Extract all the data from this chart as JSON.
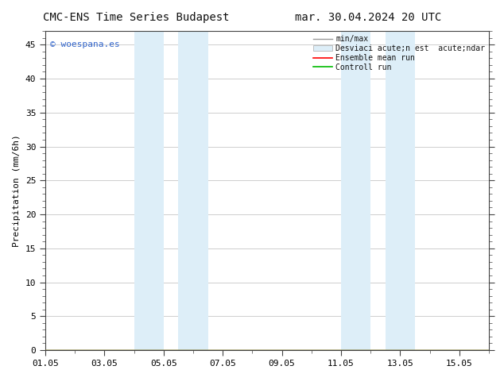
{
  "title_left": "CMC-ENS Time Series Budapest",
  "title_right": "mar. 30.04.2024 20 UTC",
  "ylabel": "Precipitation (mm/6h)",
  "ylim": [
    0,
    47
  ],
  "yticks": [
    0,
    5,
    10,
    15,
    20,
    25,
    30,
    35,
    40,
    45
  ],
  "xlim": [
    0,
    15
  ],
  "xtick_labels": [
    "01.05",
    "03.05",
    "05.05",
    "07.05",
    "09.05",
    "11.05",
    "13.05",
    "15.05"
  ],
  "xtick_positions": [
    0,
    2,
    4,
    6,
    8,
    10,
    12,
    14
  ],
  "shade_regions": [
    {
      "start": 3.0,
      "end": 4.0,
      "color": "#ddeef8"
    },
    {
      "start": 4.5,
      "end": 5.5,
      "color": "#ddeef8"
    },
    {
      "start": 10.0,
      "end": 11.0,
      "color": "#ddeef8"
    },
    {
      "start": 11.5,
      "end": 12.5,
      "color": "#ddeef8"
    }
  ],
  "legend_label_minmax": "min/max",
  "legend_label_std": "Desviaci acute;n est  acute;ndar",
  "legend_label_mean": "Ensemble mean run",
  "legend_label_ctrl": "Controll run",
  "line_color_minmax": "#999999",
  "line_color_mean": "#ff0000",
  "line_color_ctrl": "#00bb00",
  "shade_color_legend": "#ddeef8",
  "watermark": "© woespana.es",
  "watermark_color": "#3366cc",
  "watermark_fontsize": 8,
  "title_fontsize": 10,
  "axis_label_fontsize": 8,
  "tick_fontsize": 8,
  "legend_fontsize": 7,
  "bg_color": "#ffffff",
  "plot_bg_color": "#ffffff",
  "grid_color": "#bbbbbb",
  "spine_color": "#444444"
}
